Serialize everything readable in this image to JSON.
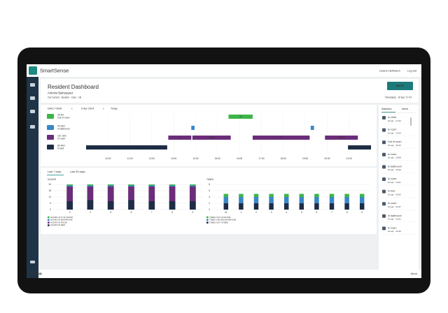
{
  "header": {
    "app_name": "SmartSense",
    "user": "Lisane Hellmann",
    "logout": "Log out"
  },
  "page": {
    "title": "Resident Dashboard",
    "resident": "Antonio Balmaquez",
    "location": "Our Sunset · Boulder - Care - 1B",
    "back": "BACK",
    "timestamp_label": "Timestamp",
    "timestamp": "10 Apr 17:47"
  },
  "daily_view": {
    "label": "DAILY VIEW",
    "date": "9 Apr 2024",
    "today": "Today"
  },
  "timeline": {
    "xlim": [
      9,
      22
    ],
    "ticks": [
      {
        "value": 10,
        "label": "10:00"
      },
      {
        "value": 11,
        "label": "11:00"
      },
      {
        "value": 12,
        "label": "12:00"
      },
      {
        "value": 13,
        "label": "13:00"
      },
      {
        "value": 14,
        "label": "14:00"
      },
      {
        "value": 15,
        "label": "15:00"
      },
      {
        "value": 16,
        "label": "16:00"
      },
      {
        "value": 17,
        "label": "17:00"
      },
      {
        "value": 18,
        "label": "18:00"
      },
      {
        "value": 19,
        "label": "19:00"
      },
      {
        "value": 20,
        "label": "20:00"
      },
      {
        "value": 21,
        "label": "21:00"
      }
    ],
    "rows": [
      {
        "label": "3h 0m",
        "sublabel": "Out of room",
        "color": "#3db54a",
        "segments": [
          {
            "start": 15.5,
            "end": 16.6,
            "label": "2h"
          }
        ]
      },
      {
        "label": "0h 26m",
        "sublabel": "In bathroom",
        "color": "#3a87c8",
        "segments": [
          {
            "start": 13.8,
            "end": 13.95
          },
          {
            "start": 19.25,
            "end": 19.4
          }
        ]
      },
      {
        "label": "11h 15m",
        "sublabel": "In room",
        "color": "#6b2d7a",
        "segments": [
          {
            "start": 12.75,
            "end": 13.8,
            "label": "2h"
          },
          {
            "start": 13.85,
            "end": 15.6,
            "label": "2h45m"
          },
          {
            "start": 16.6,
            "end": 19.2,
            "label": "5h"
          },
          {
            "start": 19.9,
            "end": 21.4,
            "label": "2h45m"
          }
        ]
      },
      {
        "label": "8h 40m",
        "sublabel": "In bed",
        "color": "#1e2d45",
        "segments": [
          {
            "start": 9,
            "end": 12.7,
            "label": "7h"
          },
          {
            "start": 20.95,
            "end": 22,
            "label": "10h30m"
          }
        ]
      }
    ]
  },
  "range_tabs": [
    "Last 7 days",
    "Last 30 days"
  ],
  "side_panel": {
    "tabs": [
      "Statistics",
      "Alerts"
    ],
    "events": [
      {
        "name": "In chair",
        "time": "10 apr · 17:22"
      },
      {
        "name": "In room",
        "time": "10 apr · 17:04"
      },
      {
        "name": "Out of room",
        "time": "10 apr · 16:12"
      },
      {
        "name": "In room",
        "time": "10 apr · 15:58"
      },
      {
        "name": "In bathroom",
        "time": "10 apr · 15:40"
      },
      {
        "name": "In room",
        "time": "10 apr · 14:21"
      },
      {
        "name": "In bed",
        "time": "10 apr · 13:02"
      },
      {
        "name": "In room",
        "time": "10 apr · 12:47"
      },
      {
        "name": "In bathroom",
        "time": "10 apr · 11:30"
      },
      {
        "name": "In room",
        "time": "10 apr · 10:15"
      }
    ]
  },
  "footer": {
    "brand": "ascom",
    "about": "About"
  },
  "chart_data": [
    {
      "type": "bar",
      "stacked": true,
      "title": "HOURS",
      "categories": [
        "3",
        "4",
        "5",
        "6",
        "7",
        "8",
        "9"
      ],
      "ylim": [
        0,
        24
      ],
      "yticks": [
        0,
        6,
        12,
        18,
        24
      ],
      "grid": true,
      "series": [
        {
          "name": "HOURS OUT OF ROOM",
          "color": "#3db54a",
          "values": [
            1,
            1,
            1,
            1,
            1,
            1,
            1
          ]
        },
        {
          "name": "HOURS IN BATHROOM",
          "color": "#3a87c8",
          "values": [
            1,
            1,
            1,
            1,
            1,
            1,
            1
          ]
        },
        {
          "name": "HOURS IN ROOM",
          "color": "#6b2d7a",
          "values": [
            14,
            13,
            14,
            13,
            14,
            14,
            14
          ]
        },
        {
          "name": "HOURS IN BED",
          "color": "#1e2d45",
          "values": [
            8,
            9,
            8,
            9,
            8,
            8,
            8
          ]
        }
      ]
    },
    {
      "type": "bar",
      "stacked": true,
      "title": "TIMES",
      "categories": [
        "31",
        "1",
        "2",
        "3",
        "4",
        "5",
        "6",
        "7",
        "8",
        "9"
      ],
      "ylim": [
        0,
        8
      ],
      "yticks": [
        0,
        2,
        4,
        6,
        8
      ],
      "grid": true,
      "series": [
        {
          "name": "TIMES OUT OF ROOM",
          "color": "#3db54a",
          "values": [
            1,
            1,
            1,
            1,
            1,
            1,
            1,
            1,
            1,
            1
          ]
        },
        {
          "name": "TIMES VISITED BATHROOM",
          "color": "#3a87c8",
          "values": [
            2,
            2,
            2,
            2,
            2,
            2,
            2,
            2,
            2,
            2
          ]
        },
        {
          "name": "TIMES OUT OF BED",
          "color": "#1e2d45",
          "values": [
            2,
            2,
            2,
            2,
            2,
            2,
            2,
            2,
            2,
            2
          ]
        }
      ]
    }
  ]
}
